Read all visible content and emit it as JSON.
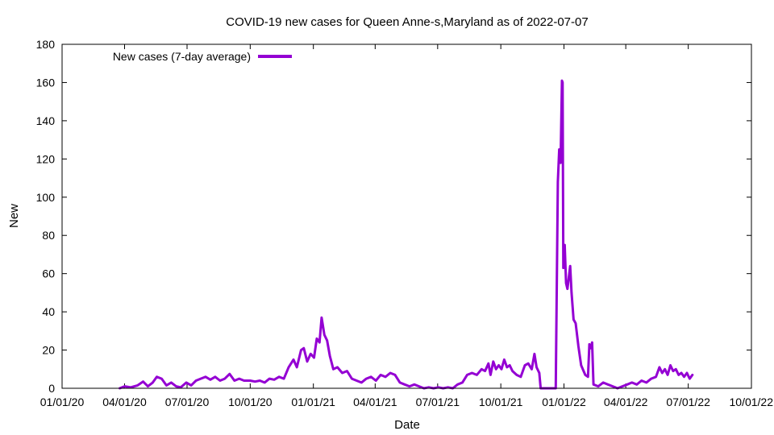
{
  "chart_data": {
    "type": "line",
    "title": "COVID-19 new cases for Queen Anne-s,Maryland as of 2022-07-07",
    "xlabel": "Date",
    "ylabel": "New",
    "xlim": [
      "2020-01-01",
      "2022-10-01"
    ],
    "ylim": [
      0,
      180
    ],
    "x_ticks": [
      "01/01/20",
      "04/01/20",
      "07/01/20",
      "10/01/20",
      "01/01/21",
      "04/01/21",
      "07/01/21",
      "10/01/21",
      "01/01/22",
      "04/01/22",
      "07/01/22",
      "10/01/22"
    ],
    "y_ticks": [
      0,
      20,
      40,
      60,
      80,
      100,
      120,
      140,
      160,
      180
    ],
    "grid": false,
    "legend_position": "top-left",
    "series": [
      {
        "name": "New cases (7-day average)",
        "color": "#9400d3",
        "points": [
          [
            "2020-03-25",
            0
          ],
          [
            "2020-04-01",
            1
          ],
          [
            "2020-04-10",
            0.5
          ],
          [
            "2020-04-20",
            1.5
          ],
          [
            "2020-04-28",
            3.5
          ],
          [
            "2020-05-05",
            1
          ],
          [
            "2020-05-12",
            3
          ],
          [
            "2020-05-18",
            6
          ],
          [
            "2020-05-25",
            5
          ],
          [
            "2020-06-01",
            1.5
          ],
          [
            "2020-06-08",
            3
          ],
          [
            "2020-06-15",
            1
          ],
          [
            "2020-06-22",
            0.5
          ],
          [
            "2020-06-30",
            3
          ],
          [
            "2020-07-07",
            1.5
          ],
          [
            "2020-07-14",
            4
          ],
          [
            "2020-07-21",
            5
          ],
          [
            "2020-07-28",
            6
          ],
          [
            "2020-08-04",
            4.5
          ],
          [
            "2020-08-11",
            6
          ],
          [
            "2020-08-18",
            4
          ],
          [
            "2020-08-25",
            5
          ],
          [
            "2020-09-01",
            7.5
          ],
          [
            "2020-09-08",
            4
          ],
          [
            "2020-09-15",
            5
          ],
          [
            "2020-09-22",
            4
          ],
          [
            "2020-10-01",
            4
          ],
          [
            "2020-10-08",
            3.5
          ],
          [
            "2020-10-15",
            4
          ],
          [
            "2020-10-22",
            3
          ],
          [
            "2020-10-29",
            5
          ],
          [
            "2020-11-05",
            4.5
          ],
          [
            "2020-11-12",
            6
          ],
          [
            "2020-11-19",
            5
          ],
          [
            "2020-11-26",
            11
          ],
          [
            "2020-12-03",
            15
          ],
          [
            "2020-12-08",
            11
          ],
          [
            "2020-12-14",
            20
          ],
          [
            "2020-12-18",
            21
          ],
          [
            "2020-12-23",
            14
          ],
          [
            "2020-12-28",
            18
          ],
          [
            "2021-01-02",
            16
          ],
          [
            "2021-01-06",
            26
          ],
          [
            "2021-01-10",
            24
          ],
          [
            "2021-01-13",
            37
          ],
          [
            "2021-01-17",
            28
          ],
          [
            "2021-01-21",
            25
          ],
          [
            "2021-01-25",
            17
          ],
          [
            "2021-01-30",
            10
          ],
          [
            "2021-02-05",
            11
          ],
          [
            "2021-02-12",
            8
          ],
          [
            "2021-02-19",
            9
          ],
          [
            "2021-02-26",
            5
          ],
          [
            "2021-03-05",
            4
          ],
          [
            "2021-03-12",
            3
          ],
          [
            "2021-03-19",
            5
          ],
          [
            "2021-03-26",
            6
          ],
          [
            "2021-04-02",
            4
          ],
          [
            "2021-04-09",
            7
          ],
          [
            "2021-04-16",
            6
          ],
          [
            "2021-04-23",
            8
          ],
          [
            "2021-04-30",
            7
          ],
          [
            "2021-05-07",
            3
          ],
          [
            "2021-05-14",
            2
          ],
          [
            "2021-05-21",
            1
          ],
          [
            "2021-05-28",
            2
          ],
          [
            "2021-06-04",
            1
          ],
          [
            "2021-06-11",
            0
          ],
          [
            "2021-06-18",
            0.5
          ],
          [
            "2021-06-25",
            0
          ],
          [
            "2021-07-02",
            0.5
          ],
          [
            "2021-07-09",
            0
          ],
          [
            "2021-07-16",
            0.5
          ],
          [
            "2021-07-23",
            0
          ],
          [
            "2021-07-30",
            2
          ],
          [
            "2021-08-06",
            3
          ],
          [
            "2021-08-13",
            7
          ],
          [
            "2021-08-20",
            8
          ],
          [
            "2021-08-27",
            7
          ],
          [
            "2021-09-03",
            10
          ],
          [
            "2021-09-08",
            9
          ],
          [
            "2021-09-13",
            13
          ],
          [
            "2021-09-16",
            7
          ],
          [
            "2021-09-20",
            14
          ],
          [
            "2021-09-24",
            10
          ],
          [
            "2021-09-28",
            12
          ],
          [
            "2021-10-02",
            10
          ],
          [
            "2021-10-06",
            15
          ],
          [
            "2021-10-10",
            11
          ],
          [
            "2021-10-14",
            12
          ],
          [
            "2021-10-18",
            9
          ],
          [
            "2021-10-24",
            7
          ],
          [
            "2021-10-30",
            6
          ],
          [
            "2021-11-05",
            12
          ],
          [
            "2021-11-10",
            13
          ],
          [
            "2021-11-15",
            10
          ],
          [
            "2021-11-19",
            18
          ],
          [
            "2021-11-22",
            11
          ],
          [
            "2021-11-26",
            8
          ],
          [
            "2021-11-28",
            0
          ],
          [
            "2021-12-10",
            0
          ],
          [
            "2021-12-20",
            0
          ],
          [
            "2021-12-23",
            108
          ],
          [
            "2021-12-25",
            125
          ],
          [
            "2021-12-27",
            118
          ],
          [
            "2021-12-29",
            161
          ],
          [
            "2021-12-30",
            160
          ],
          [
            "2021-12-31",
            63
          ],
          [
            "2022-01-02",
            75
          ],
          [
            "2022-01-04",
            55
          ],
          [
            "2022-01-06",
            52
          ],
          [
            "2022-01-08",
            58
          ],
          [
            "2022-01-10",
            64
          ],
          [
            "2022-01-12",
            50
          ],
          [
            "2022-01-15",
            36
          ],
          [
            "2022-01-18",
            34
          ],
          [
            "2022-01-22",
            22
          ],
          [
            "2022-01-26",
            12
          ],
          [
            "2022-02-01",
            7
          ],
          [
            "2022-02-05",
            6
          ],
          [
            "2022-02-07",
            23
          ],
          [
            "2022-02-09",
            21
          ],
          [
            "2022-02-11",
            24
          ],
          [
            "2022-02-13",
            2
          ],
          [
            "2022-02-20",
            1
          ],
          [
            "2022-02-27",
            3
          ],
          [
            "2022-03-06",
            2
          ],
          [
            "2022-03-13",
            1
          ],
          [
            "2022-03-20",
            0
          ],
          [
            "2022-03-27",
            1
          ],
          [
            "2022-04-03",
            2
          ],
          [
            "2022-04-10",
            3
          ],
          [
            "2022-04-17",
            2
          ],
          [
            "2022-04-24",
            4
          ],
          [
            "2022-05-01",
            3
          ],
          [
            "2022-05-08",
            5
          ],
          [
            "2022-05-15",
            6
          ],
          [
            "2022-05-20",
            11
          ],
          [
            "2022-05-24",
            8
          ],
          [
            "2022-05-28",
            10
          ],
          [
            "2022-06-01",
            7
          ],
          [
            "2022-06-05",
            12
          ],
          [
            "2022-06-09",
            9
          ],
          [
            "2022-06-13",
            10
          ],
          [
            "2022-06-17",
            7
          ],
          [
            "2022-06-21",
            8
          ],
          [
            "2022-06-25",
            6
          ],
          [
            "2022-06-29",
            8
          ],
          [
            "2022-07-03",
            5
          ],
          [
            "2022-07-07",
            7
          ]
        ]
      }
    ]
  }
}
